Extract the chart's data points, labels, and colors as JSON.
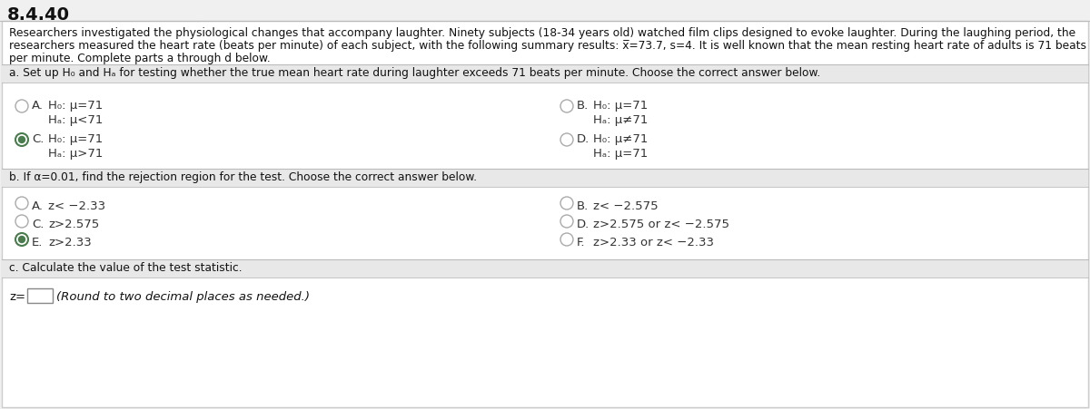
{
  "title": "8.4.40",
  "background_color": "#f0f0f0",
  "box_color": "#ffffff",
  "border_color": "#cccccc",
  "intro_text_line1": "Researchers investigated the physiological changes that accompany laughter. Ninety subjects (18-34 years old) watched film clips designed to evoke laughter. During the laughing period, the",
  "intro_text_line2": "researchers measured the heart rate (beats per minute) of each subject, with the following summary results: x̅=73.7, s=4. It is well known that the mean resting heart rate of adults is 71 beats",
  "intro_text_line3": "per minute. Complete parts a through d below.",
  "part_a_label": "a. Set up H₀ and Hₐ for testing whether the true mean heart rate during laughter exceeds 71 beats per minute. Choose the correct answer below.",
  "part_a_options": [
    {
      "id": "A",
      "selected": false,
      "col": 0,
      "line1": "H₀: μ=71",
      "line2": "Hₐ: μ<71"
    },
    {
      "id": "B",
      "selected": false,
      "col": 1,
      "line1": "H₀: μ=71",
      "line2": "Hₐ: μ≠71"
    },
    {
      "id": "C",
      "selected": true,
      "col": 0,
      "line1": "H₀: μ=71",
      "line2": "Hₐ: μ>71"
    },
    {
      "id": "D",
      "selected": false,
      "col": 1,
      "line1": "H₀: μ≠71",
      "line2": "Hₐ: μ=71"
    }
  ],
  "part_b_label": "b. If α=0.01, find the rejection region for the test. Choose the correct answer below.",
  "part_b_options": [
    {
      "id": "A",
      "selected": false,
      "col": 0,
      "text": "z< −2.33"
    },
    {
      "id": "B",
      "selected": false,
      "col": 1,
      "text": "z< −2.575"
    },
    {
      "id": "C",
      "selected": false,
      "col": 0,
      "text": "z>2.575"
    },
    {
      "id": "D",
      "selected": false,
      "col": 1,
      "text": "z>2.575 or z< −2.575"
    },
    {
      "id": "E",
      "selected": true,
      "col": 0,
      "text": "z>2.33"
    },
    {
      "id": "F",
      "selected": false,
      "col": 1,
      "text": "z>2.33 or z< −2.33"
    }
  ],
  "part_c_label": "c. Calculate the value of the test statistic.",
  "part_c_text": "(Round to two decimal places as needed.)",
  "selected_fill": "#4a7c4e",
  "selected_text": "#333333",
  "unselected_text": "#333333",
  "radio_selected_outer": "#4a7c4e",
  "radio_selected_inner": "#4a7c4e",
  "radio_unselected": "#aaaaaa",
  "section_header_bg": "#e8e8e8",
  "divider_color": "#bbbbbb",
  "text_fontsize": 8.8,
  "label_fontsize": 8.8,
  "option_fontsize": 9.5,
  "title_fontsize": 14
}
